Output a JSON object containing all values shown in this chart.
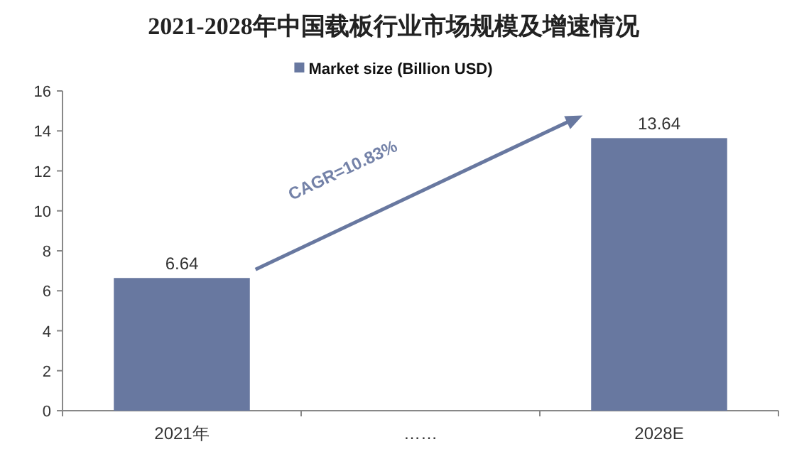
{
  "chart_data": {
    "type": "bar",
    "title": "2021-2028年中国载板行业市场规模及增速情况",
    "categories": [
      "2021年",
      "……",
      "2028E"
    ],
    "series": [
      {
        "name": "Market size (Billion USD)",
        "color": "#6878a0",
        "values": [
          6.64,
          null,
          13.64
        ]
      }
    ],
    "ylim": [
      0,
      16
    ],
    "yticks": [
      0,
      2,
      4,
      6,
      8,
      10,
      12,
      14,
      16
    ],
    "data_labels": true,
    "legend": "top",
    "grid": false,
    "annotations": [
      "CAGR=10.83%"
    ]
  }
}
